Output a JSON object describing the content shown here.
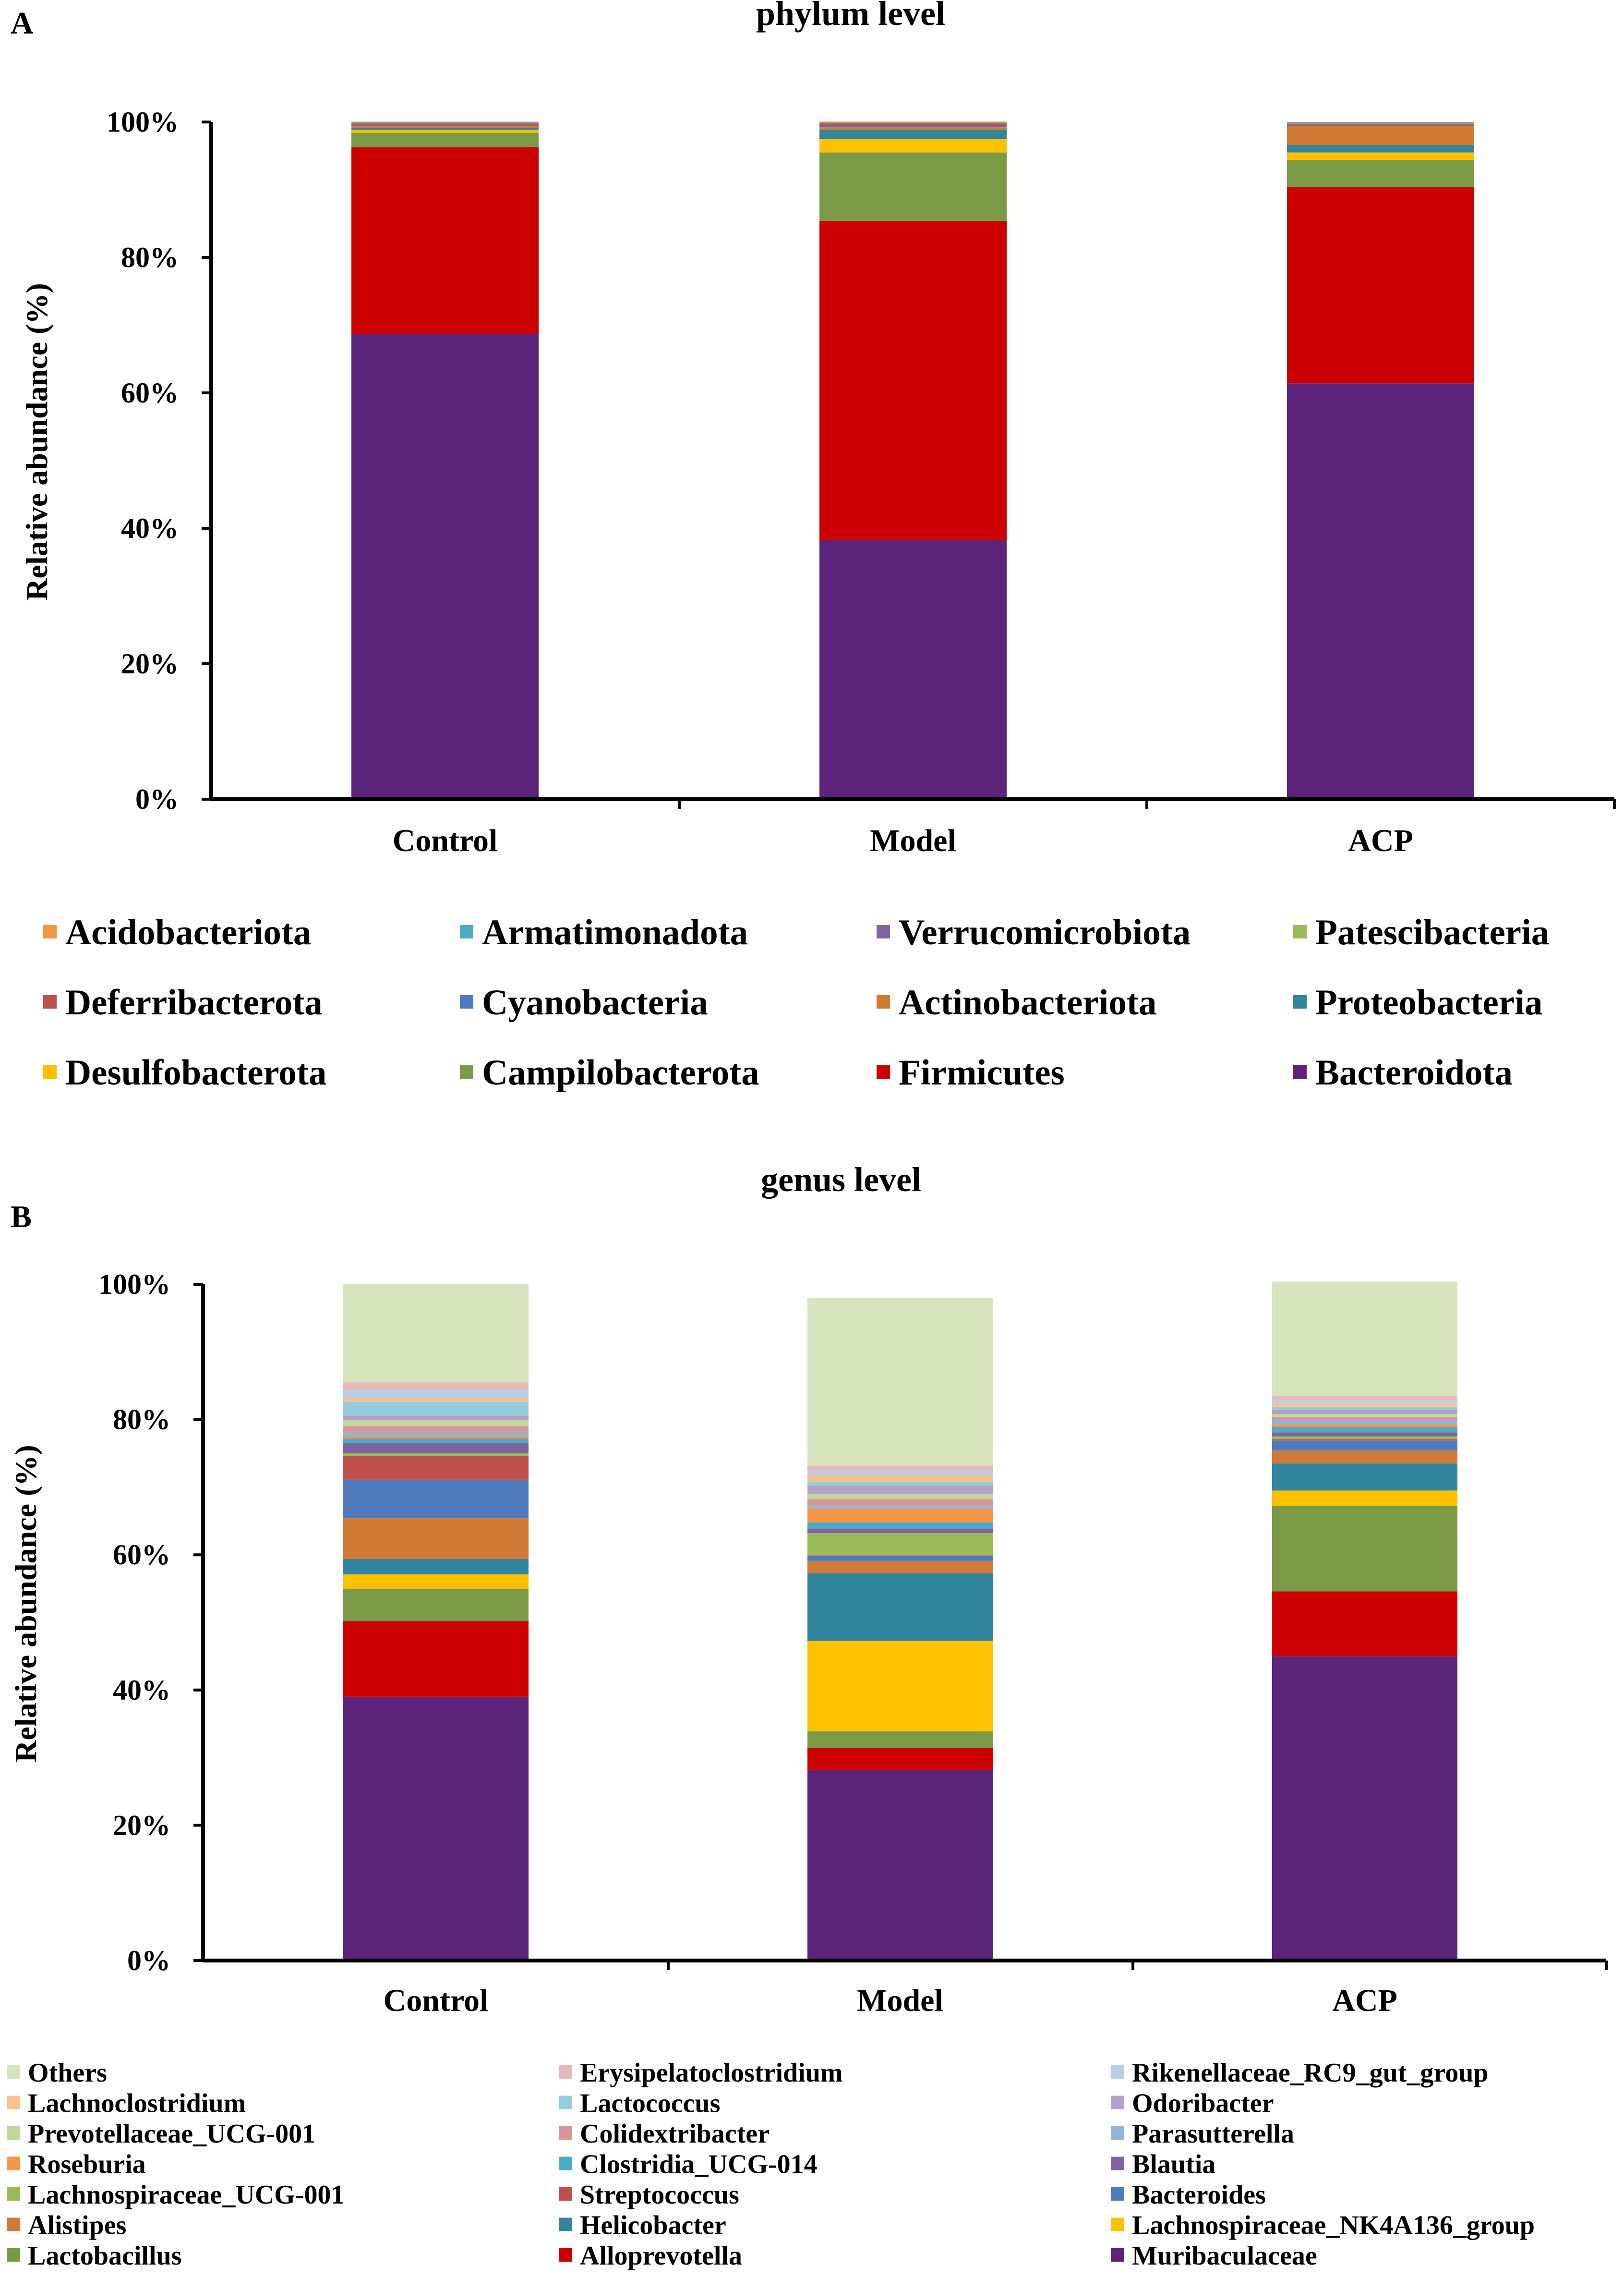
{
  "panels": {
    "a": {
      "letter": "A",
      "title": "phylum   level"
    },
    "b": {
      "letter": "B",
      "title": "genus   level"
    }
  },
  "chart_data": [
    {
      "type": "bar",
      "stacked": true,
      "title": "phylum   level",
      "ylabel": "Relative abundance (%)",
      "xlabel": "",
      "ylim": [
        0,
        100
      ],
      "yticks": [
        "0%",
        "20%",
        "40%",
        "60%",
        "80%",
        "100%"
      ],
      "categories": [
        "Control",
        "Model",
        "ACP"
      ],
      "series": [
        {
          "name": "Bacteroidota",
          "color": "#5B2379",
          "values": [
            68.7,
            38.3,
            61.4
          ]
        },
        {
          "name": "Firmicutes",
          "color": "#CC0000",
          "values": [
            27.6,
            47.1,
            29.0
          ]
        },
        {
          "name": "Campilobacterota",
          "color": "#7A9A45",
          "values": [
            2.1,
            10.1,
            4.0
          ]
        },
        {
          "name": "Desulfobacterota",
          "color": "#FFC000",
          "values": [
            0.4,
            2.0,
            1.1
          ]
        },
        {
          "name": "Proteobacteria",
          "color": "#31859C",
          "values": [
            0.3,
            1.3,
            1.1
          ]
        },
        {
          "name": "Actinobacteriota",
          "color": "#D07A35",
          "values": [
            0.3,
            0.4,
            2.8
          ]
        },
        {
          "name": "Cyanobacteria",
          "color": "#4F7BBC",
          "values": [
            0.1,
            0.2,
            0.1
          ]
        },
        {
          "name": "Deferribacterota",
          "color": "#C0504D",
          "values": [
            0.3,
            0.4,
            0.2
          ]
        },
        {
          "name": "Patescibacteria",
          "color": "#9BBB59",
          "values": [
            0.1,
            0.1,
            0.1
          ]
        },
        {
          "name": "Verrucomicrobiota",
          "color": "#8064A2",
          "values": [
            0.05,
            0.05,
            0.1
          ]
        },
        {
          "name": "Armatimonadota",
          "color": "#4BACC6",
          "values": [
            0.05,
            0.05,
            0.05
          ]
        },
        {
          "name": "Acidobacteriota",
          "color": "#F79646",
          "values": [
            0.05,
            0.05,
            0.05
          ]
        }
      ],
      "legend": {
        "placement": "bottom",
        "columns": 4,
        "order": [
          "Acidobacteriota",
          "Armatimonadota",
          "Verrucomicrobiota",
          "Patescibacteria",
          "Deferribacterota",
          "Cyanobacteria",
          "Actinobacteriota",
          "Proteobacteria",
          "Desulfobacterota",
          "Campilobacterota",
          "Firmicutes",
          "Bacteroidota"
        ]
      }
    },
    {
      "type": "bar",
      "stacked": true,
      "title": "genus   level",
      "ylabel": "Relative abundance (%)",
      "xlabel": "",
      "ylim": [
        0,
        100
      ],
      "yticks": [
        "0%",
        "20%",
        "40%",
        "60%",
        "80%",
        "100%"
      ],
      "categories": [
        "Control",
        "Model",
        "ACP"
      ],
      "series": [
        {
          "name": "Muribaculaceae",
          "color": "#5B2379",
          "values": [
            39.0,
            28.2,
            45.0
          ]
        },
        {
          "name": "Alloprevotella",
          "color": "#CC0000",
          "values": [
            11.2,
            3.2,
            9.6
          ]
        },
        {
          "name": "Lactobacillus",
          "color": "#7A9A45",
          "values": [
            4.8,
            2.5,
            12.6
          ]
        },
        {
          "name": "Lachnospiraceae_NK4A136_group",
          "color": "#FFC000",
          "values": [
            2.1,
            13.4,
            2.3
          ]
        },
        {
          "name": "Helicobacter",
          "color": "#31859C",
          "values": [
            2.3,
            10.0,
            4.0
          ]
        },
        {
          "name": "Alistipes",
          "color": "#D07A35",
          "values": [
            6.0,
            1.8,
            1.9
          ]
        },
        {
          "name": "Bacteroides",
          "color": "#4F7BBC",
          "values": [
            5.7,
            0.7,
            1.5
          ]
        },
        {
          "name": "Streptococcus",
          "color": "#C0504D",
          "values": [
            3.5,
            0.1,
            0.2
          ]
        },
        {
          "name": "Lachnospiraceae_UCG-001",
          "color": "#9BBB59",
          "values": [
            0.4,
            3.3,
            0.4
          ]
        },
        {
          "name": "Blautia",
          "color": "#8064A2",
          "values": [
            1.5,
            0.7,
            0.6
          ]
        },
        {
          "name": "Clostridia_UCG-014",
          "color": "#4BACC6",
          "values": [
            0.7,
            0.9,
            0.8
          ]
        },
        {
          "name": "Roseburia",
          "color": "#F79646",
          "values": [
            0.4,
            2.0,
            0.4
          ]
        },
        {
          "name": "Parasutterella",
          "color": "#95B3D7",
          "values": [
            0.6,
            0.5,
            0.6
          ]
        },
        {
          "name": "Colidextribacter",
          "color": "#D99694",
          "values": [
            0.8,
            0.9,
            0.5
          ]
        },
        {
          "name": "Prevotellaceae_UCG-001",
          "color": "#C3D69B",
          "values": [
            0.9,
            0.8,
            0.4
          ]
        },
        {
          "name": "Odoribacter",
          "color": "#B3A2C7",
          "values": [
            0.7,
            1.2,
            0.6
          ]
        },
        {
          "name": "Lactococcus",
          "color": "#93CDDD",
          "values": [
            2.0,
            0.6,
            0.5
          ]
        },
        {
          "name": "Lachnoclostridium",
          "color": "#FAC090",
          "values": [
            0.6,
            1.0,
            0.5
          ]
        },
        {
          "name": "Rikenellaceae_RC9_gut_group",
          "color": "#B9CDE5",
          "values": [
            1.2,
            0.6,
            0.5
          ]
        },
        {
          "name": "Erysipelatoclostridium",
          "color": "#E6B9B8",
          "values": [
            1.1,
            0.7,
            0.6
          ]
        },
        {
          "name": "Others",
          "color": "#D7E4BD",
          "values": [
            14.5,
            24.9,
            16.9
          ]
        }
      ],
      "legend": {
        "placement": "bottom",
        "columns": 3,
        "order": [
          "Others",
          "Erysipelatoclostridium",
          "Rikenellaceae_RC9_gut_group",
          "Lachnoclostridium",
          "Lactococcus",
          "Odoribacter",
          "Prevotellaceae_UCG-001",
          "Colidextribacter",
          "Parasutterella",
          "Roseburia",
          "Clostridia_UCG-014",
          "Blautia",
          "Lachnospiraceae_UCG-001",
          "Streptococcus",
          "Bacteroides",
          "Alistipes",
          "Helicobacter",
          "Lachnospiraceae_NK4A136_group",
          "Lactobacillus",
          "Alloprevotella",
          "Muribaculaceae"
        ]
      }
    }
  ]
}
